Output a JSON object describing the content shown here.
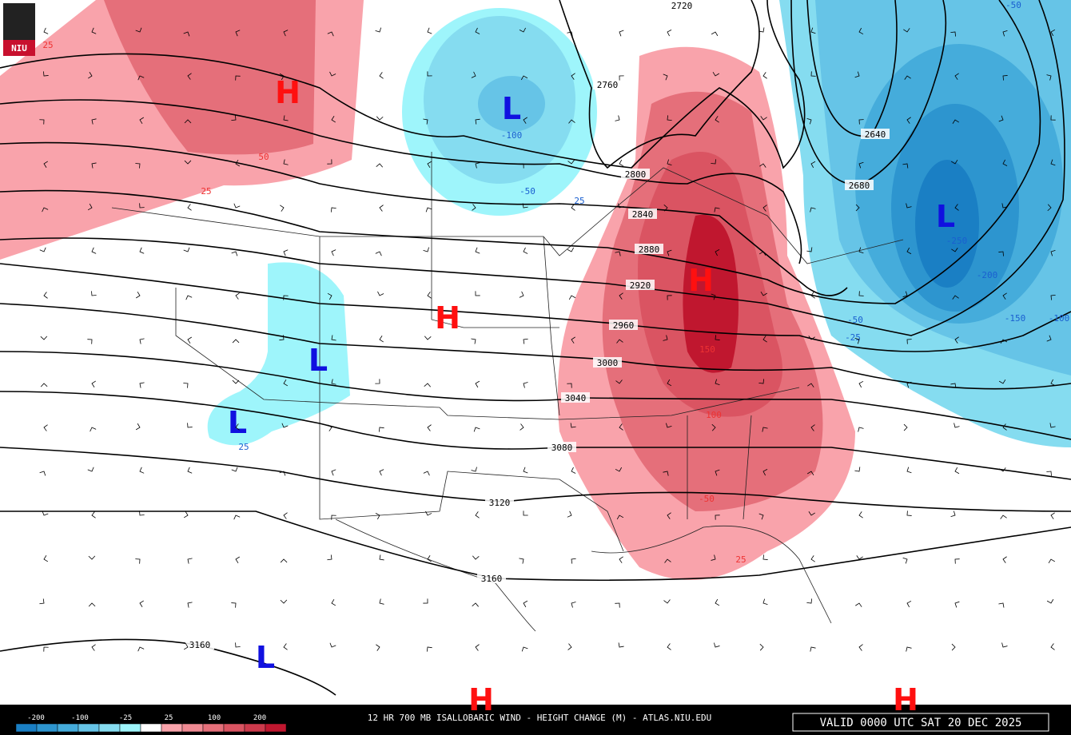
{
  "logo": "NIU",
  "footer": {
    "title": "12 HR 700 MB ISALLOBARIC WIND - HEIGHT CHANGE (M) - ATLAS.NIU.EDU",
    "valid": "VALID 0000 UTC SAT 20 DEC 2025"
  },
  "colorbar": {
    "labels": [
      "-200",
      "-100",
      "-25",
      "25",
      "100",
      "200"
    ],
    "colors": [
      "#1a7fc4",
      "#2d95cf",
      "#45acdb",
      "#66c4e7",
      "#85dcf0",
      "#9ef5fb",
      "#ffffff",
      "#f9a3ab",
      "#f08a93",
      "#e56f7a",
      "#da5462",
      "#cd3a4c",
      "#c0172f"
    ]
  },
  "contour_labels": [
    "2720",
    "2760",
    "2800",
    "2840",
    "2880",
    "2920",
    "2960",
    "3000",
    "3040",
    "3080",
    "3120",
    "3160",
    "3160",
    "2640",
    "2680"
  ],
  "change_labels": [
    "25",
    "50",
    "25",
    "-100",
    "-50",
    "25",
    "25",
    "150",
    "100",
    "-50",
    "25",
    "-250",
    "-200",
    "-150",
    "-100",
    "-50",
    "-25",
    "-50"
  ],
  "centers": [
    "H",
    "L",
    "H",
    "L",
    "L",
    "H",
    "L",
    "L",
    "H",
    "H"
  ]
}
